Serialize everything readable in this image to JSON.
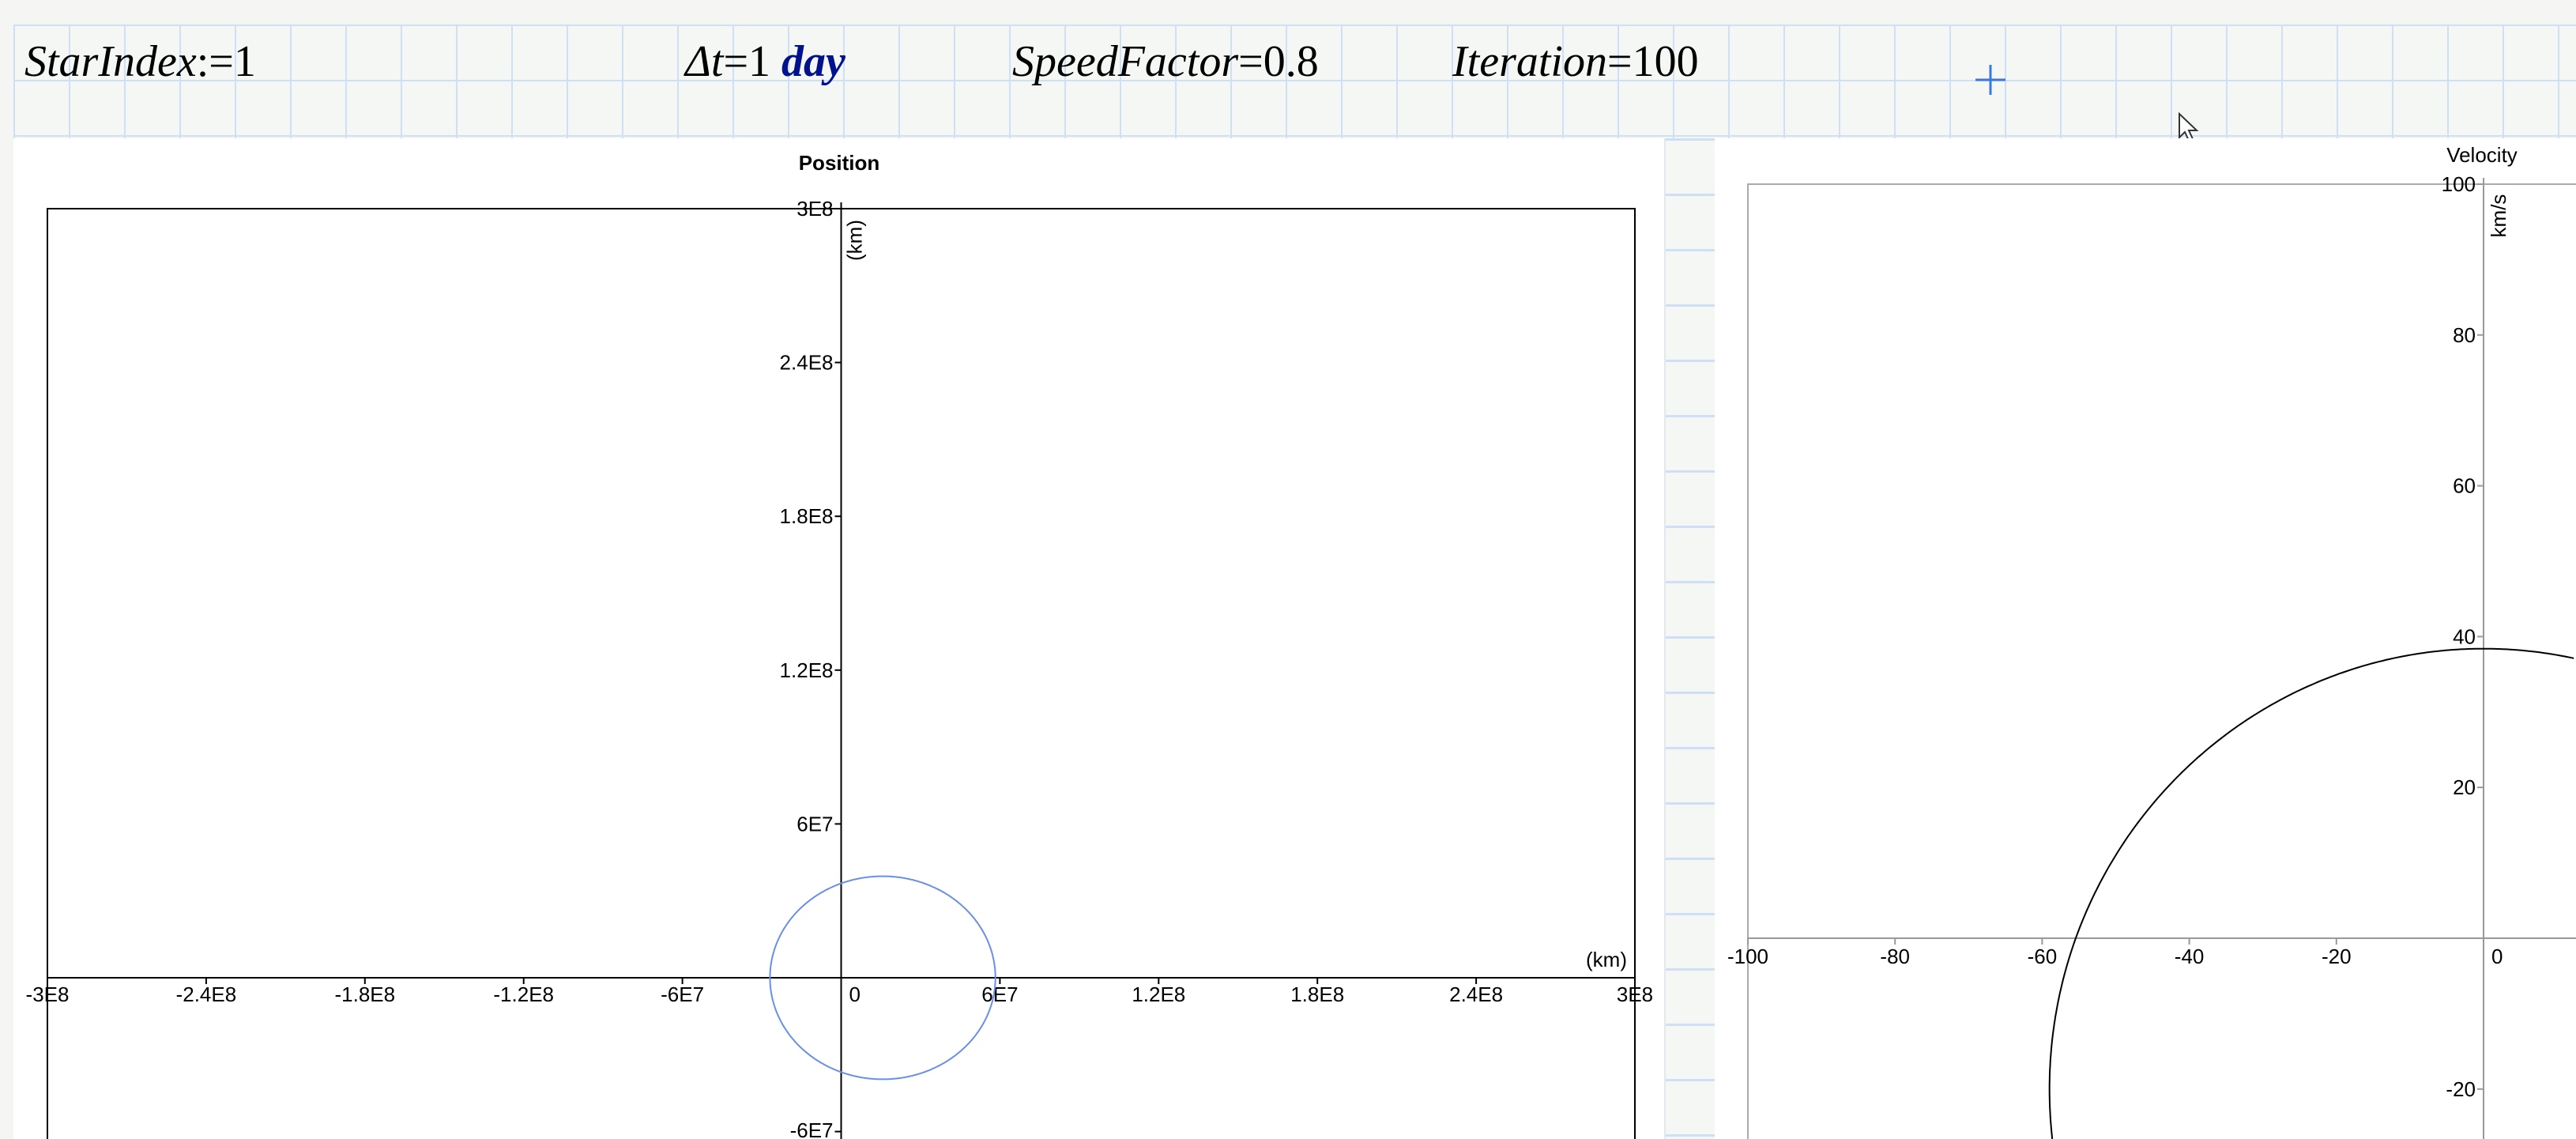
{
  "header": {
    "star_index": {
      "name": "StarIndex",
      "op": ":=",
      "value": "1"
    },
    "delta_t": {
      "name": "Δt",
      "op": "=",
      "value": "1",
      "unit": "day"
    },
    "speed_factor": {
      "name": "SpeedFactor",
      "op": "=",
      "value": "0.8"
    },
    "iteration": {
      "name": "Iteration",
      "op": "=",
      "value": "100"
    }
  },
  "colors": {
    "unit": "#00138c",
    "position_trace": "#6a8fe6",
    "velocity_trace": "#000000",
    "grid": "#cfe0f6"
  },
  "icons": {
    "cursor": "crosshair-plus-icon",
    "pointer": "mouse-pointer-icon"
  },
  "chart_data": [
    {
      "type": "line",
      "title": "Position",
      "xlabel": "(km)",
      "ylabel": "(km)",
      "xlim": [
        -300000000,
        300000000
      ],
      "ylim_visible": [
        -60000000,
        300000000
      ],
      "x_ticks": [
        {
          "v": -300000000,
          "label": "-3E8"
        },
        {
          "v": -240000000,
          "label": "-2.4E8"
        },
        {
          "v": -180000000,
          "label": "-1.8E8"
        },
        {
          "v": -120000000,
          "label": "-1.2E8"
        },
        {
          "v": -60000000,
          "label": "-6E7"
        },
        {
          "v": 0,
          "label": "0"
        },
        {
          "v": 60000000,
          "label": "6E7"
        },
        {
          "v": 120000000,
          "label": "1.2E8"
        },
        {
          "v": 180000000,
          "label": "1.8E8"
        },
        {
          "v": 240000000,
          "label": "2.4E8"
        },
        {
          "v": 300000000,
          "label": "3E8"
        }
      ],
      "y_ticks": [
        {
          "v": 300000000,
          "label": "3E8"
        },
        {
          "v": 240000000,
          "label": "2.4E8"
        },
        {
          "v": 180000000,
          "label": "1.8E8"
        },
        {
          "v": 120000000,
          "label": "1.2E8"
        },
        {
          "v": 60000000,
          "label": "6E7"
        },
        {
          "v": -60000000,
          "label": "-6E7"
        }
      ],
      "series": [
        {
          "shape": "ellipse",
          "center": [
            15700000,
            0
          ],
          "radii": [
            42600000,
            39600000
          ]
        }
      ]
    },
    {
      "type": "line",
      "title": "Velocity",
      "ylabel": "km/s",
      "xlim": [
        -100,
        0
      ],
      "ylim_visible": [
        -25,
        100
      ],
      "x_ticks": [
        {
          "v": -100,
          "label": "-100"
        },
        {
          "v": -80,
          "label": "-80"
        },
        {
          "v": -60,
          "label": "-60"
        },
        {
          "v": -40,
          "label": "-40"
        },
        {
          "v": -20,
          "label": "-20"
        },
        {
          "v": 0,
          "label": "0"
        }
      ],
      "y_ticks": [
        {
          "v": 100,
          "label": "100"
        },
        {
          "v": 80,
          "label": "80"
        },
        {
          "v": 60,
          "label": "60"
        },
        {
          "v": 40,
          "label": "40"
        },
        {
          "v": 20,
          "label": "20"
        },
        {
          "v": -20,
          "label": "-20"
        }
      ],
      "series": [
        {
          "shape": "circle",
          "center": [
            0,
            -20
          ],
          "radii": [
            59,
            58.4
          ]
        }
      ]
    }
  ]
}
